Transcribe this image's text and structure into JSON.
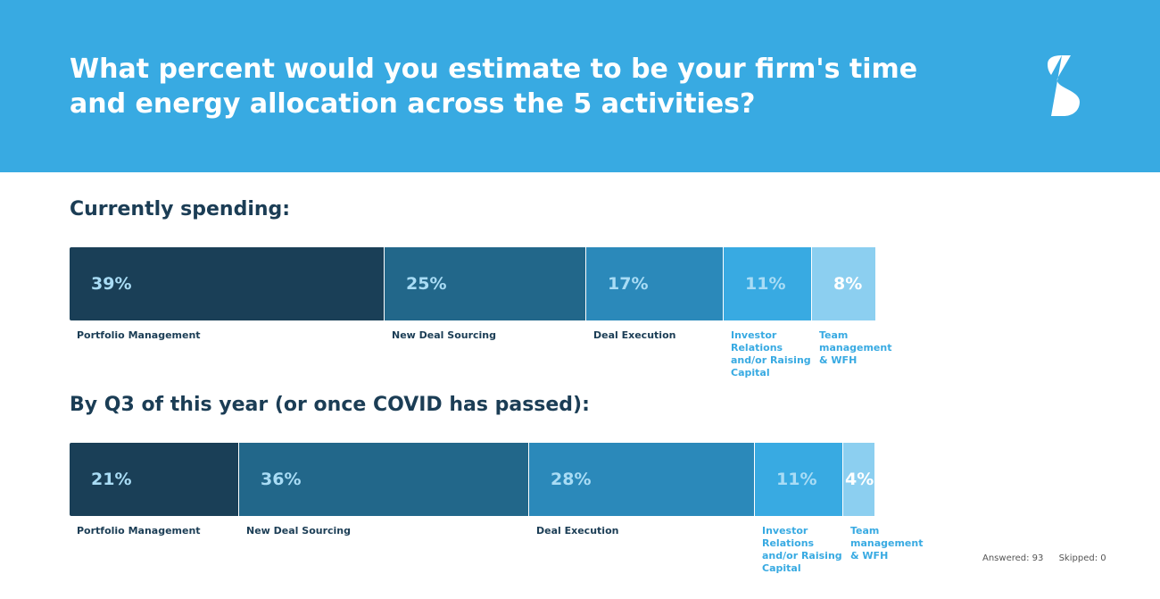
{
  "title": "What percent would you estimate to be your firm's time and energy allocation across the 5 activities?",
  "colors": {
    "header": "#38aae2",
    "segments": [
      "#1a3f57",
      "#22678a",
      "#2b89ba",
      "#38aae2",
      "#8ccff0"
    ],
    "segment_text": "#a9dcf5",
    "label_dark": "#1b3d55",
    "label_light": "#38aae2"
  },
  "chart_data": [
    {
      "type": "bar",
      "orientation": "horizontal-stacked",
      "title": "Currently spending:",
      "categories": [
        "Portfolio Management",
        "New Deal Sourcing",
        "Deal Execution",
        "Investor Relations and/or Raising Capital",
        "Team management & WFH"
      ],
      "values": [
        39,
        25,
        17,
        11,
        8
      ],
      "value_labels": [
        "39%",
        "25%",
        "17%",
        "11%",
        "8%"
      ],
      "ylim": [
        0,
        100
      ]
    },
    {
      "type": "bar",
      "orientation": "horizontal-stacked",
      "title": "By Q3 of this year (or once COVID has passed):",
      "categories": [
        "Portfolio Management",
        "New Deal Sourcing",
        "Deal Execution",
        "Investor Relations and/or Raising Capital",
        "Team management & WFH"
      ],
      "values": [
        21,
        36,
        28,
        11,
        4
      ],
      "value_labels": [
        "21%",
        "36%",
        "28%",
        "11%",
        "4%"
      ],
      "ylim": [
        0,
        100
      ]
    }
  ],
  "footer": {
    "answered": "Answered: 93",
    "skipped": "Skipped: 0"
  }
}
